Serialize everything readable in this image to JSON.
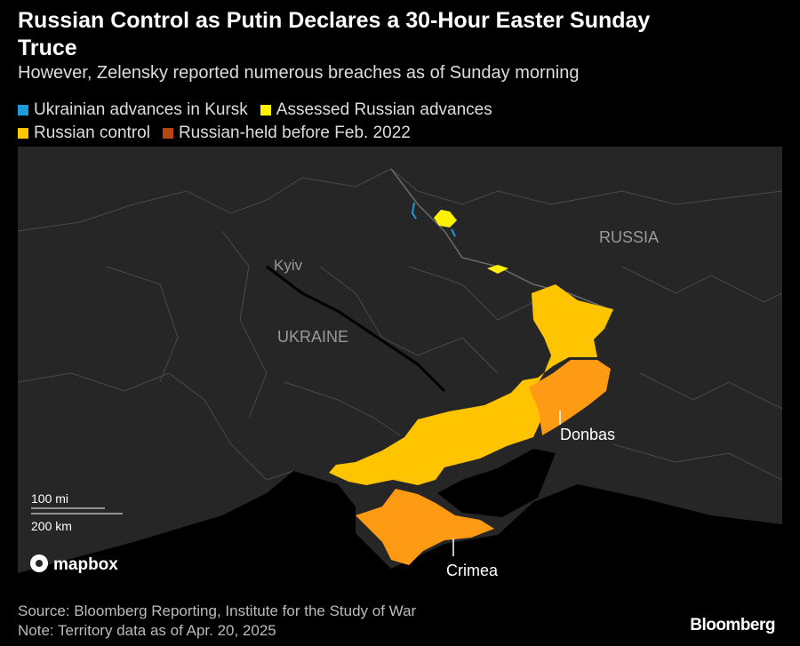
{
  "header": {
    "title": "Russian Control as Putin Declares a 30-Hour Easter Sunday Truce",
    "subtitle": "However, Zelensky reported numerous breaches as of Sunday morning"
  },
  "legend": [
    {
      "label": "Ukrainian advances in Kursk",
      "color": "#1e9bdc"
    },
    {
      "label": "Assessed Russian advances",
      "color": "#fff200"
    },
    {
      "label": "Russian control",
      "color": "#ffc400"
    },
    {
      "label": "Russian-held before Feb. 2022",
      "color": "#ff9a14"
    }
  ],
  "map": {
    "labels": {
      "russia": "RUSSIA",
      "kyiv": "Kyiv",
      "ukraine": "UKRAINE",
      "donbas": "Donbas",
      "crimea": "Crimea"
    },
    "scale": {
      "miles": "100 mi",
      "km": "200 km"
    },
    "attribution": "mapbox"
  },
  "footer": {
    "source": "Source: Bloomberg Reporting, Institute for the Study of War",
    "note": "Note: Territory data as of Apr. 20, 2025",
    "brand": "Bloomberg"
  }
}
